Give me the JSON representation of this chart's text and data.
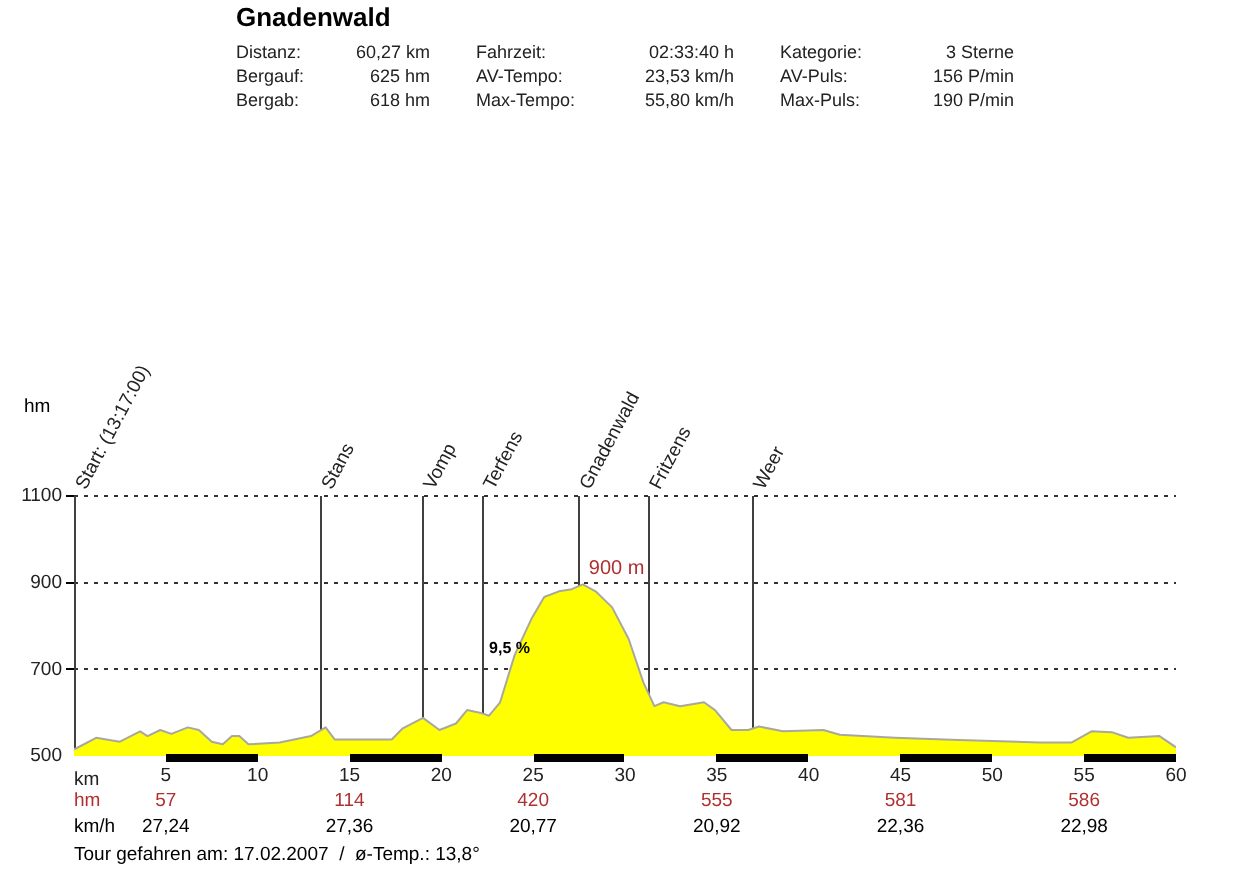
{
  "chart_data": {
    "type": "area",
    "title": "Gnadenwald",
    "xlabel": "km",
    "ylabel": "hm",
    "x": [
      0,
      1.2,
      2.5,
      3.6,
      4.0,
      4.7,
      5.3,
      6.2,
      6.8,
      7.5,
      8.1,
      8.6,
      9.0,
      9.5,
      11.2,
      12.9,
      13.7,
      14.2,
      17.3,
      17.9,
      19.0,
      19.9,
      20.8,
      21.4,
      22.1,
      22.6,
      23.2,
      24.0,
      24.9,
      25.6,
      26.4,
      27.1,
      27.7,
      28.4,
      29.3,
      30.2,
      31.0,
      31.6,
      32.1,
      33.0,
      34.3,
      34.9,
      35.8,
      36.7,
      37.3,
      38.6,
      40.8,
      41.7,
      44.7,
      48.2,
      52.6,
      54.3,
      55.4,
      56.5,
      57.4,
      59.1,
      60
    ],
    "series": [
      {
        "color": "#ffff00",
        "values": [
          515,
          542,
          533,
          557,
          546,
          560,
          551,
          566,
          560,
          533,
          527,
          546,
          546,
          527,
          531,
          546,
          566,
          538,
          538,
          564,
          588,
          560,
          575,
          606,
          600,
          593,
          624,
          734,
          816,
          867,
          880,
          885,
          896,
          880,
          843,
          770,
          670,
          615,
          624,
          615,
          624,
          606,
          560,
          560,
          568,
          557,
          560,
          549,
          542,
          537,
          531,
          531,
          557,
          555,
          542,
          546,
          520
        ]
      }
    ],
    "xlim": [
      0,
      60
    ],
    "xticks": [
      {
        "value": 0,
        "label": null
      },
      5,
      10,
      15,
      20,
      25,
      30,
      35,
      40,
      45,
      50,
      55,
      60
    ],
    "ylim": [
      500,
      1100
    ],
    "yticks": [
      500,
      700,
      900,
      1100
    ],
    "grid": "y",
    "legend": false,
    "marker": "none",
    "ref_lines": [
      {
        "axis": "x",
        "value": 0,
        "label": "Start: (13:17:00)"
      },
      {
        "axis": "x",
        "value": 13.4,
        "label": "Stans"
      },
      {
        "axis": "x",
        "value": 18.9,
        "label": "Vomp"
      },
      {
        "axis": "x",
        "value": 22.2,
        "label": "Terfens"
      },
      {
        "axis": "x",
        "value": 27.4,
        "label": "Gnadenwald"
      },
      {
        "axis": "x",
        "value": 31.2,
        "label": "Fritzens"
      },
      {
        "axis": "x",
        "value": 36.9,
        "label": "Weer"
      }
    ],
    "annotations": [
      "Distanz:",
      "60,27 km",
      "Fahrzeit:",
      "02:33:40 h",
      "Kategorie:",
      "3 Sterne",
      "Bergauf:",
      "625 hm",
      "AV-Tempo:",
      "23,53 km/h",
      "AV-Puls:",
      "156 P/min",
      "Bergab:",
      "618 hm",
      "Max-Tempo:",
      "55,80 km/h",
      "Max-Puls:",
      "190 P/min",
      "hm",
      "57",
      "114",
      "420",
      "555",
      "581",
      "586",
      "km/h",
      "27,24",
      "27,36",
      "20,77",
      "20,92",
      "22,36",
      "22,98",
      "Tour gefahren am: 17.02.2007  /  ø-Temp.: 13,8°",
      {
        "text": "900 m",
        "x": 27.7,
        "y": 900
      },
      {
        "text": "9,5 %",
        "x": 22.6,
        "y": 720
      }
    ]
  }
}
